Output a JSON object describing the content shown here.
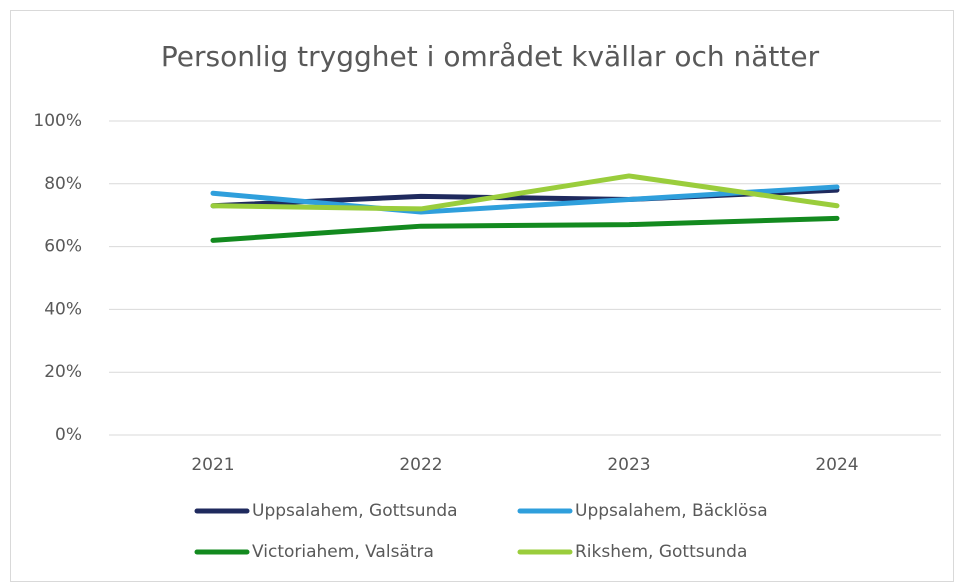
{
  "chart_data": {
    "type": "line",
    "title": "Personlig trygghet i området kvällar och nätter",
    "categories": [
      "2021",
      "2022",
      "2023",
      "2024"
    ],
    "series": [
      {
        "name": "Uppsalahem, Gottsunda",
        "color": "#1f2a5e",
        "values": [
          73,
          76,
          75,
          78
        ]
      },
      {
        "name": "Uppsalahem, Bäcklösa",
        "color": "#2f9fdc",
        "values": [
          77,
          71,
          75,
          79
        ]
      },
      {
        "name": "Victoriahem, Valsätra",
        "color": "#138a1f",
        "values": [
          62,
          66.5,
          67,
          69
        ]
      },
      {
        "name": "Rikshem, Gottsunda",
        "color": "#9acd3c",
        "values": [
          73,
          72,
          82.5,
          73
        ]
      }
    ],
    "ylim": [
      0,
      100
    ],
    "yticks": [
      {
        "value": 0,
        "label": "0%"
      },
      {
        "value": 20,
        "label": "20%"
      },
      {
        "value": 40,
        "label": "40%"
      },
      {
        "value": 60,
        "label": "60%"
      },
      {
        "value": 80,
        "label": "80%"
      },
      {
        "value": 100,
        "label": "100%"
      }
    ],
    "grid": true
  }
}
